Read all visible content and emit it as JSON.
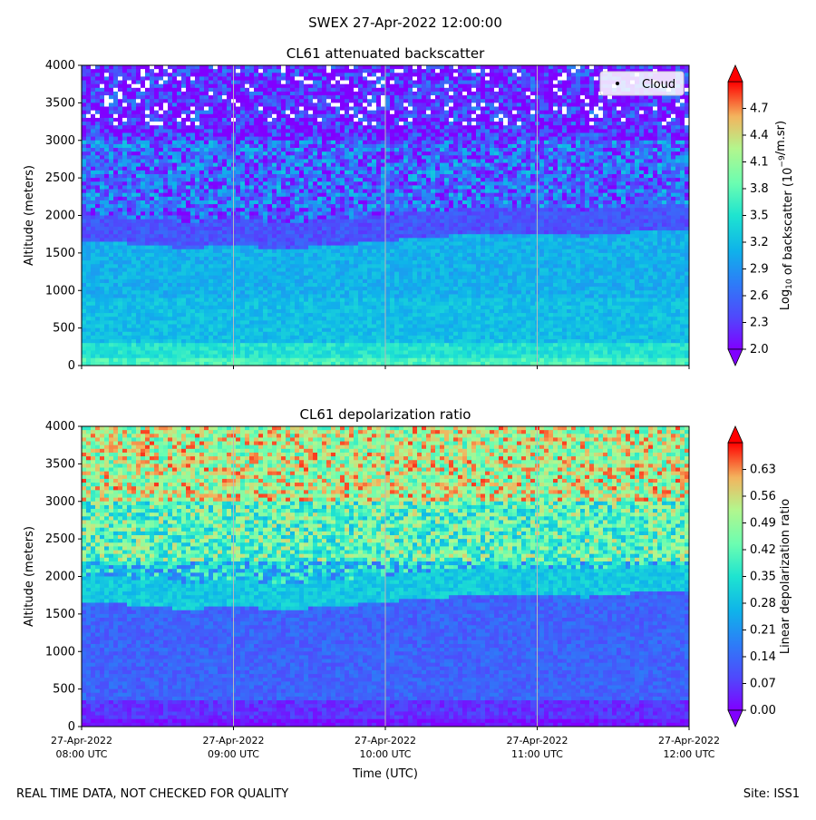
{
  "suptitle": "SWEX 27-Apr-2022 12:00:00",
  "footer": {
    "left": "REAL TIME DATA, NOT CHECKED FOR QUALITY",
    "right": "Site: ISS1"
  },
  "chart_data": [
    {
      "type": "heatmap",
      "title": "CL61 attenuated backscatter",
      "ylabel": "Altitude (meters)",
      "xlabel": "",
      "ylim": [
        0,
        4000
      ],
      "yticks": [
        "0",
        "500",
        "1000",
        "1500",
        "2000",
        "2500",
        "3000",
        "3500",
        "4000"
      ],
      "xticks": [],
      "colorbar": {
        "label_pre": "Log",
        "label_sub": "10",
        "label_mid": " of backscatter (10",
        "label_sup": "−9",
        "label_post": "/m.sr)",
        "range": [
          2.0,
          5.0
        ],
        "ticks": [
          "2.0",
          "2.3",
          "2.6",
          "2.9",
          "3.2",
          "3.5",
          "3.8",
          "4.1",
          "4.4",
          "4.7"
        ]
      },
      "legend": {
        "label": "Cloud",
        "position": "top-right"
      },
      "layers": [
        {
          "from": 0,
          "to": 120,
          "value": 3.7
        },
        {
          "from": 120,
          "to": 320,
          "value": 3.5
        },
        {
          "from": 320,
          "to": 900,
          "value": 3.2
        },
        {
          "from": 900,
          "to": 1650,
          "value": 3.1
        },
        {
          "from": 1650,
          "to": 2100,
          "value": 2.45
        },
        {
          "from": 2100,
          "to": 3000,
          "value": 2.6
        },
        {
          "from": 3000,
          "to": 4000,
          "value": 2.2
        }
      ],
      "boundary_layer_top": [
        1650,
        1620,
        1560,
        1600,
        1550,
        1600,
        1660,
        1720,
        1740,
        1760,
        1720,
        1780,
        1800
      ]
    },
    {
      "type": "heatmap",
      "title": "CL61 depolarization ratio",
      "ylabel": "Altitude (meters)",
      "xlabel": "Time (UTC)",
      "ylim": [
        0,
        4000
      ],
      "yticks": [
        "0",
        "500",
        "1000",
        "1500",
        "2000",
        "2500",
        "3000",
        "3500",
        "4000"
      ],
      "xticks": [
        {
          "line1": "27-Apr-2022",
          "line2": "08:00 UTC"
        },
        {
          "line1": "27-Apr-2022",
          "line2": "09:00 UTC"
        },
        {
          "line1": "27-Apr-2022",
          "line2": "10:00 UTC"
        },
        {
          "line1": "27-Apr-2022",
          "line2": "11:00 UTC"
        },
        {
          "line1": "27-Apr-2022",
          "line2": "12:00 UTC"
        }
      ],
      "colorbar": {
        "label": "Linear depolarization ratio",
        "range": [
          0.0,
          0.7
        ],
        "ticks": [
          "0.00",
          "0.07",
          "0.14",
          "0.21",
          "0.28",
          "0.35",
          "0.42",
          "0.49",
          "0.56",
          "0.63"
        ]
      },
      "layers": [
        {
          "from": 0,
          "to": 120,
          "value": 0.02
        },
        {
          "from": 120,
          "to": 350,
          "value": 0.06
        },
        {
          "from": 350,
          "to": 1650,
          "value": 0.13
        },
        {
          "from": 1650,
          "to": 2200,
          "value": 0.3
        },
        {
          "from": 2200,
          "to": 3000,
          "value": 0.42
        },
        {
          "from": 3000,
          "to": 4000,
          "value": 0.52
        }
      ],
      "boundary_layer_top": [
        1650,
        1620,
        1560,
        1600,
        1550,
        1600,
        1660,
        1720,
        1740,
        1760,
        1720,
        1780,
        1800
      ]
    }
  ]
}
